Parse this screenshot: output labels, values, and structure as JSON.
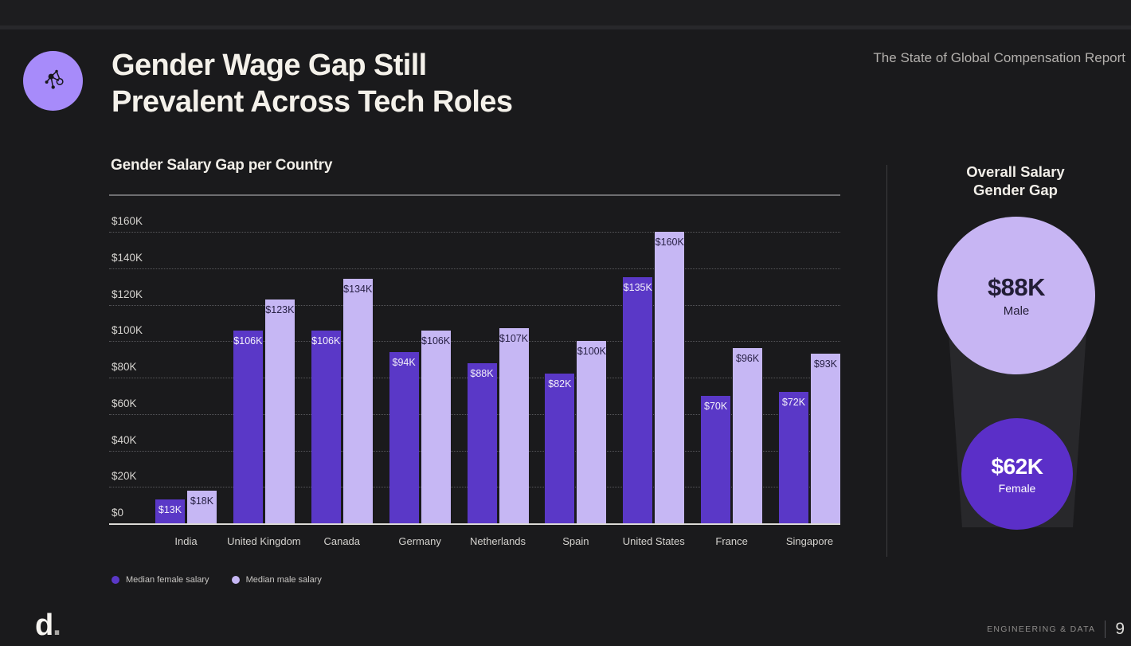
{
  "header": {
    "title_lines": [
      "Gender Wage Gap Still",
      "Prevalent Across Tech Roles"
    ],
    "report_name": "The State of Global Compensation Report"
  },
  "chart_data": {
    "type": "bar",
    "title": "Gender Salary Gap per Country",
    "categories": [
      "India",
      "United Kingdom",
      "Canada",
      "Germany",
      "Netherlands",
      "Spain",
      "United States",
      "France",
      "Singapore"
    ],
    "series": [
      {
        "name": "Median female salary",
        "color": "#5a38c7",
        "values": [
          13000,
          106000,
          106000,
          94000,
          88000,
          82000,
          135000,
          70000,
          72000
        ],
        "labels": [
          "$13K",
          "$106K",
          "$106K",
          "$94K",
          "$88K",
          "$82K",
          "$135K",
          "$70K",
          "$72K"
        ]
      },
      {
        "name": "Median male salary",
        "color": "#c6b7f4",
        "values": [
          18000,
          123000,
          134000,
          106000,
          107000,
          100000,
          160000,
          96000,
          93000
        ],
        "labels": [
          "$18K",
          "$123K",
          "$134K",
          "$106K",
          "$107K",
          "$100K",
          "$160K",
          "$96K",
          "$93K"
        ]
      }
    ],
    "y_ticks": [
      {
        "value": 0,
        "label": "$0"
      },
      {
        "value": 20000,
        "label": "$20K"
      },
      {
        "value": 40000,
        "label": "$40K"
      },
      {
        "value": 60000,
        "label": "$60K"
      },
      {
        "value": 80000,
        "label": "$80K"
      },
      {
        "value": 100000,
        "label": "$100K"
      },
      {
        "value": 120000,
        "label": "$120K"
      },
      {
        "value": 140000,
        "label": "$140K"
      },
      {
        "value": 160000,
        "label": "$160K"
      }
    ],
    "ylim": [
      0,
      160000
    ],
    "xlabel": "",
    "ylabel": "",
    "grid": "dotted-horizontal",
    "legend_position": "bottom-left"
  },
  "side_panel": {
    "title_lines": [
      "Overall Salary",
      "Gender Gap"
    ],
    "bubbles": [
      {
        "id": "male",
        "value": "$88K",
        "label": "Male",
        "color": "#c7b5f3",
        "text_color": "#221d35"
      },
      {
        "id": "female",
        "value": "$62K",
        "label": "Female",
        "color": "#5b2fc8",
        "text_color": "#ffffff"
      }
    ]
  },
  "footer": {
    "logo_d": "d",
    "logo_dot": ".",
    "section_label": "ENGINEERING & DATA",
    "page_number": "9"
  },
  "colors": {
    "background": "#1a1a1c",
    "topbar": "#1d1d1f",
    "female_bar": "#5a38c7",
    "male_bar": "#c6b7f4",
    "icon_circle": "#a78bfa",
    "baseline": "#dcdad6"
  }
}
